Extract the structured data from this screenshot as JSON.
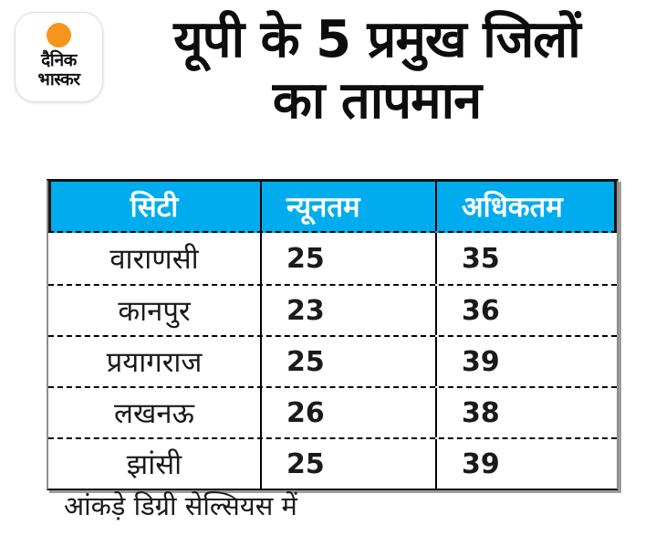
{
  "logo": {
    "line1": "दैनिक",
    "line2": "भास्कर"
  },
  "title": {
    "line1": "यूपी के 5 प्रमुख जिलों",
    "line2": "का तापमान",
    "full": "यूपी के 5 प्रमुख जिलों का तापमान"
  },
  "table": {
    "headers": {
      "city": "सिटी",
      "min": "न्यूनतम",
      "max": "अधिकतम"
    },
    "rows": [
      {
        "city": "वाराणसी",
        "min": "25",
        "max": "35"
      },
      {
        "city": "कानपुर",
        "min": "23",
        "max": "36"
      },
      {
        "city": "प्रयागराज",
        "min": "25",
        "max": "39"
      },
      {
        "city": "लखनऊ",
        "min": "26",
        "max": "38"
      },
      {
        "city": "झांसी",
        "min": "25",
        "max": "39"
      }
    ]
  },
  "footer": {
    "note": "आंकड़े डिग्री सेल्सियस में"
  },
  "colors": {
    "header_bg": "#00ACEE",
    "logo_dot": "#F7941E",
    "text": "#141414",
    "border_gray": "#8F8F8F"
  },
  "chart_data": {
    "type": "table",
    "title": "यूपी के 5 प्रमुख जिलों का तापमान",
    "columns": [
      "सिटी",
      "न्यूनतम",
      "अधिकतम"
    ],
    "rows": [
      [
        "वाराणसी",
        25,
        35
      ],
      [
        "कानपुर",
        23,
        36
      ],
      [
        "प्रयागराज",
        25,
        39
      ],
      [
        "लखनऊ",
        26,
        38
      ],
      [
        "झांसी",
        25,
        39
      ]
    ],
    "note": "आंकड़े डिग्री सेल्सियस में",
    "legend_position": "none",
    "grid": "dashed-row-separators"
  }
}
